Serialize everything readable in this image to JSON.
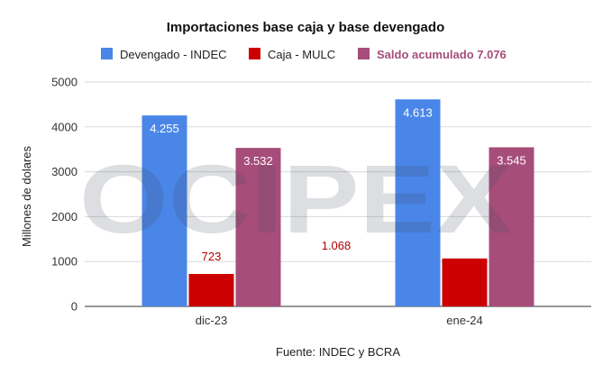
{
  "chart_data": {
    "type": "bar",
    "title": "Importaciones base caja y base devengado",
    "categories": [
      "dic-23",
      "ene-24"
    ],
    "series": [
      {
        "name": "Devengado - INDEC",
        "color": "#4a86e8",
        "values": [
          4255,
          4613
        ],
        "labels": [
          "4.255",
          "4.613"
        ],
        "label_color": "#ffffff"
      },
      {
        "name": "Caja - MULC",
        "color": "#cc0000",
        "values": [
          723,
          1068
        ],
        "labels": [
          "723",
          "1.068"
        ],
        "label_color": "#b30000"
      },
      {
        "name": "Saldo acumulado 7.076",
        "color": "#a64d79",
        "values": [
          3532,
          3545
        ],
        "labels": [
          "3.532",
          "3.545"
        ],
        "label_color": "#ffffff"
      }
    ],
    "ylabel": "Millones de dolares",
    "xlabel": "Fuente: INDEC y BCRA",
    "ylim": [
      0,
      5000
    ],
    "yticks": [
      0,
      1000,
      2000,
      3000,
      4000,
      5000
    ],
    "grid": true,
    "legend_position": "top",
    "watermark": "OCIPEX"
  }
}
